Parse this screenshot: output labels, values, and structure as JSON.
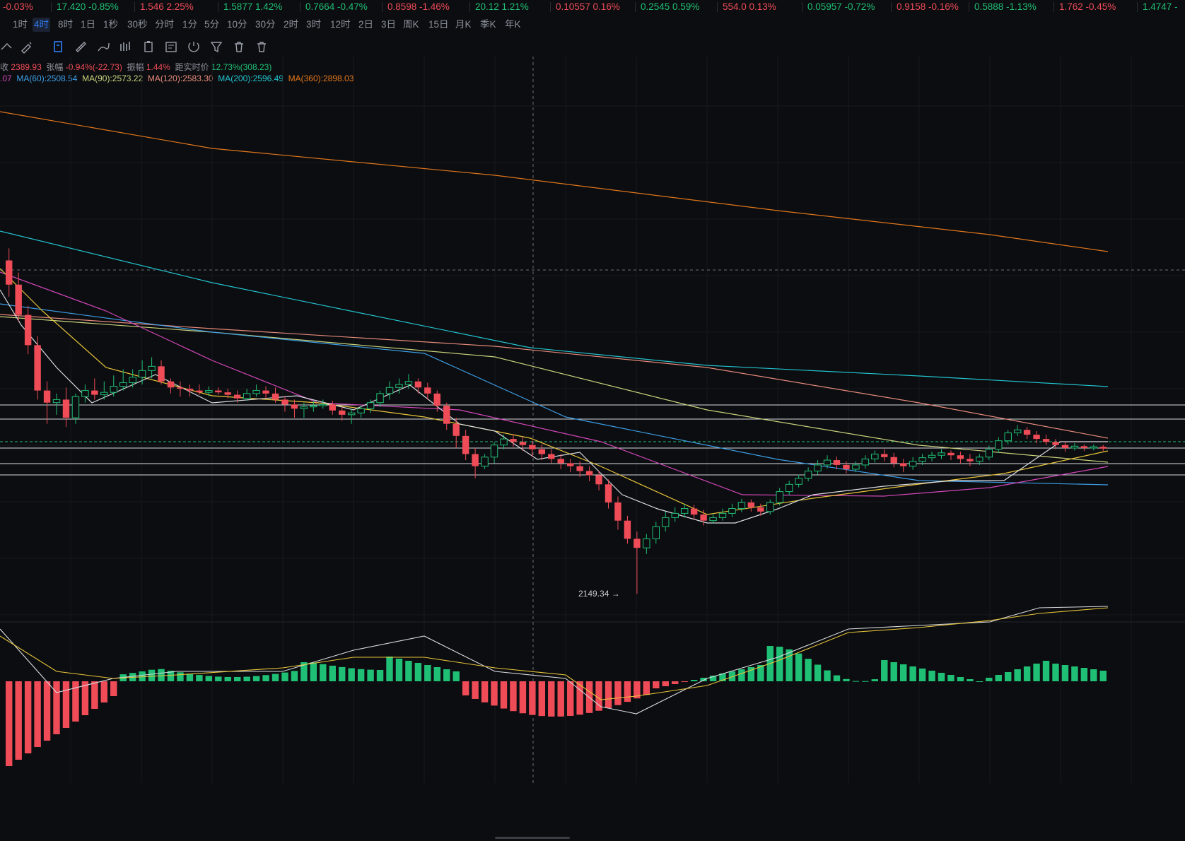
{
  "ticker": [
    {
      "price": "-0.03%",
      "change": "",
      "dir": "down"
    },
    {
      "price": "17.420",
      "change": "-0.85%",
      "dir": "up"
    },
    {
      "price": "1.546",
      "change": "2.25%",
      "dir": "down"
    },
    {
      "price": "1.5877",
      "change": "1.42%",
      "dir": "up"
    },
    {
      "price": "0.7664",
      "change": "-0.47%",
      "dir": "up"
    },
    {
      "price": "0.8598",
      "change": "-1.46%",
      "dir": "down"
    },
    {
      "price": "20.12",
      "change": "1.21%",
      "dir": "up"
    },
    {
      "price": "0.10557",
      "change": "0.16%",
      "dir": "down"
    },
    {
      "price": "0.2545",
      "change": "0.59%",
      "dir": "up"
    },
    {
      "price": "554.0",
      "change": "0.13%",
      "dir": "down"
    },
    {
      "price": "0.05957",
      "change": "-0.72%",
      "dir": "up"
    },
    {
      "price": "0.9158",
      "change": "-0.16%",
      "dir": "down"
    },
    {
      "price": "0.5888",
      "change": "-1.13%",
      "dir": "up"
    },
    {
      "price": "1.762",
      "change": "-0.45%",
      "dir": "down"
    },
    {
      "price": "1.4747",
      "change": "-",
      "dir": "up"
    }
  ],
  "timeframes": [
    "1时",
    "4时",
    "8时",
    "1日",
    "1秒",
    "30秒",
    "分时",
    "1分",
    "5分",
    "10分",
    "30分",
    "2时",
    "3时",
    "12时",
    "2日",
    "3日",
    "周K",
    "15日",
    "月K",
    "季K",
    "年K"
  ],
  "active_timeframe": "4时",
  "tools": [
    "draw-cursor-icon",
    "measure-ruler-icon",
    "brush-icon",
    "pencil-icon",
    "candle-style-icon",
    "clipboard-icon",
    "notes-icon",
    "magnet-icon",
    "filter-icon",
    "trash-icon"
  ],
  "legend": {
    "close_label": "收",
    "close_value": "2389.93",
    "change_label": "张幅",
    "change_value": "-0.94%(-22.73)",
    "amp_label": "振幅",
    "amp_value": "1.44%",
    "dist_label": "距实时价",
    "dist_value": "12.73%(308.23)",
    "ma_partial": ".07",
    "ma60": "MA(60):2508.54",
    "ma90": "MA(90):2573.22",
    "ma120": "MA(120):2583.30",
    "ma200": "MA(200):2596.49",
    "ma360": "MA(360):2898.03"
  },
  "low_marker": "2149.34 →",
  "colors": {
    "up": "#1fbf75",
    "down": "#ef4c58",
    "ma5": "#d9dbe0",
    "ma10": "#e8c53a",
    "ma30": "#d247b9",
    "ma60": "#3c9ee6",
    "ma90": "#c9d27c",
    "ma120": "#e58a7b",
    "ma200": "#22c3cf",
    "ma360": "#e0761c"
  },
  "chart_data": {
    "type": "candlestick",
    "low_label": 2149.34,
    "ma_values": {
      "MA60": 2508.54,
      "MA90": 2573.22,
      "MA120": 2583.3,
      "MA200": 2596.49,
      "MA360": 2898.03
    },
    "candles": [
      [
        2700,
        2660,
        2720,
        2640
      ],
      [
        2660,
        2610,
        2680,
        2600
      ],
      [
        2610,
        2560,
        2625,
        2545
      ],
      [
        2560,
        2485,
        2575,
        2470
      ],
      [
        2485,
        2465,
        2500,
        2430
      ],
      [
        2465,
        2470,
        2480,
        2445
      ],
      [
        2470,
        2440,
        2490,
        2425
      ],
      [
        2440,
        2475,
        2480,
        2430
      ],
      [
        2475,
        2485,
        2495,
        2465
      ],
      [
        2485,
        2478,
        2505,
        2470
      ],
      [
        2478,
        2482,
        2500,
        2470
      ],
      [
        2482,
        2492,
        2510,
        2475
      ],
      [
        2492,
        2498,
        2520,
        2485
      ],
      [
        2498,
        2507,
        2520,
        2490
      ],
      [
        2507,
        2518,
        2535,
        2495
      ],
      [
        2518,
        2525,
        2540,
        2505
      ],
      [
        2525,
        2500,
        2535,
        2495
      ],
      [
        2500,
        2490,
        2505,
        2480
      ],
      [
        2490,
        2488,
        2500,
        2475
      ],
      [
        2488,
        2485,
        2495,
        2475
      ],
      [
        2485,
        2482,
        2495,
        2478
      ],
      [
        2482,
        2485,
        2492,
        2476
      ],
      [
        2485,
        2482,
        2490,
        2478
      ],
      [
        2482,
        2478,
        2488,
        2472
      ],
      [
        2478,
        2472,
        2485,
        2465
      ],
      [
        2472,
        2480,
        2488,
        2468
      ],
      [
        2480,
        2485,
        2495,
        2475
      ],
      [
        2485,
        2480,
        2492,
        2472
      ],
      [
        2480,
        2470,
        2490,
        2465
      ],
      [
        2470,
        2462,
        2475,
        2450
      ],
      [
        2462,
        2455,
        2470,
        2440
      ],
      [
        2455,
        2458,
        2465,
        2440
      ],
      [
        2458,
        2460,
        2468,
        2450
      ],
      [
        2460,
        2462,
        2470,
        2455
      ],
      [
        2462,
        2452,
        2468,
        2445
      ],
      [
        2452,
        2445,
        2458,
        2435
      ],
      [
        2445,
        2448,
        2455,
        2430
      ],
      [
        2448,
        2455,
        2460,
        2440
      ],
      [
        2455,
        2465,
        2470,
        2448
      ],
      [
        2465,
        2480,
        2485,
        2458
      ],
      [
        2480,
        2490,
        2500,
        2470
      ],
      [
        2490,
        2495,
        2505,
        2480
      ],
      [
        2495,
        2500,
        2512,
        2488
      ],
      [
        2500,
        2490,
        2505,
        2480
      ],
      [
        2490,
        2480,
        2498,
        2470
      ],
      [
        2480,
        2460,
        2485,
        2450
      ],
      [
        2460,
        2430,
        2465,
        2420
      ],
      [
        2430,
        2410,
        2440,
        2390
      ],
      [
        2410,
        2380,
        2420,
        2370
      ],
      [
        2380,
        2360,
        2390,
        2340
      ],
      [
        2360,
        2375,
        2380,
        2355
      ],
      [
        2375,
        2395,
        2400,
        2365
      ],
      [
        2395,
        2405,
        2412,
        2388
      ],
      [
        2405,
        2400,
        2412,
        2392
      ],
      [
        2400,
        2395,
        2408,
        2385
      ],
      [
        2395,
        2388,
        2402,
        2375
      ],
      [
        2388,
        2380,
        2396,
        2370
      ],
      [
        2380,
        2372,
        2388,
        2365
      ],
      [
        2372,
        2365,
        2380,
        2355
      ],
      [
        2365,
        2360,
        2372,
        2350
      ],
      [
        2360,
        2352,
        2368,
        2342
      ],
      [
        2352,
        2345,
        2360,
        2335
      ],
      [
        2345,
        2330,
        2352,
        2320
      ],
      [
        2330,
        2300,
        2338,
        2290
      ],
      [
        2300,
        2270,
        2310,
        2255
      ],
      [
        2270,
        2240,
        2278,
        2232
      ],
      [
        2240,
        2225,
        2252,
        2149
      ],
      [
        2225,
        2240,
        2248,
        2215
      ],
      [
        2240,
        2260,
        2268,
        2232
      ],
      [
        2260,
        2275,
        2285,
        2252
      ],
      [
        2275,
        2282,
        2292,
        2268
      ],
      [
        2282,
        2290,
        2298,
        2275
      ],
      [
        2290,
        2280,
        2296,
        2272
      ],
      [
        2280,
        2270,
        2288,
        2262
      ],
      [
        2270,
        2275,
        2282,
        2265
      ],
      [
        2275,
        2282,
        2290,
        2270
      ],
      [
        2282,
        2290,
        2298,
        2276
      ],
      [
        2290,
        2300,
        2306,
        2284
      ],
      [
        2300,
        2292,
        2305,
        2285
      ],
      [
        2292,
        2285,
        2298,
        2278
      ],
      [
        2285,
        2300,
        2305,
        2280
      ],
      [
        2300,
        2318,
        2324,
        2295
      ],
      [
        2318,
        2330,
        2336,
        2312
      ],
      [
        2330,
        2340,
        2346,
        2325
      ],
      [
        2340,
        2352,
        2358,
        2335
      ],
      [
        2352,
        2362,
        2370,
        2346
      ],
      [
        2362,
        2370,
        2378,
        2356
      ],
      [
        2370,
        2362,
        2376,
        2355
      ],
      [
        2362,
        2355,
        2368,
        2348
      ],
      [
        2355,
        2362,
        2368,
        2350
      ],
      [
        2362,
        2372,
        2378,
        2356
      ],
      [
        2372,
        2380,
        2386,
        2366
      ],
      [
        2380,
        2375,
        2388,
        2368
      ],
      [
        2375,
        2365,
        2382,
        2358
      ],
      [
        2365,
        2360,
        2372,
        2350
      ],
      [
        2360,
        2368,
        2375,
        2354
      ],
      [
        2368,
        2374,
        2380,
        2362
      ],
      [
        2374,
        2378,
        2384,
        2368
      ],
      [
        2378,
        2382,
        2388,
        2372
      ],
      [
        2382,
        2378,
        2386,
        2370
      ],
      [
        2378,
        2372,
        2384,
        2364
      ],
      [
        2372,
        2368,
        2380,
        2360
      ],
      [
        2368,
        2375,
        2380,
        2362
      ],
      [
        2375,
        2388,
        2394,
        2370
      ],
      [
        2388,
        2402,
        2408,
        2382
      ],
      [
        2402,
        2415,
        2420,
        2396
      ],
      [
        2415,
        2420,
        2428,
        2410
      ],
      [
        2420,
        2412,
        2425,
        2405
      ],
      [
        2412,
        2405,
        2418,
        2398
      ],
      [
        2405,
        2400,
        2412,
        2395
      ],
      [
        2400,
        2395,
        2405,
        2388
      ],
      [
        2395,
        2390,
        2400,
        2384
      ],
      [
        2390,
        2393,
        2398,
        2386
      ],
      [
        2393,
        2390,
        2396,
        2385
      ],
      [
        2390,
        2392,
        2396,
        2386
      ],
      [
        2392,
        2389,
        2395,
        2385
      ]
    ]
  }
}
